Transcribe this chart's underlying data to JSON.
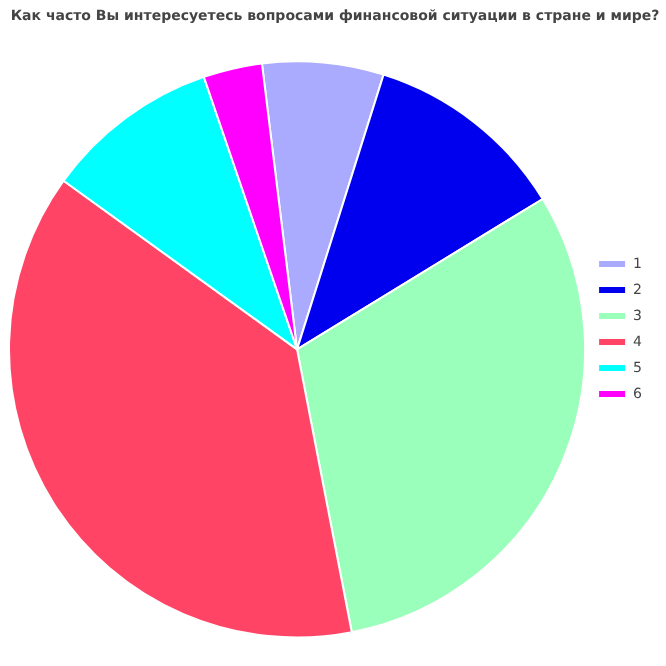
{
  "chart_data": {
    "type": "pie",
    "title": "Как часто Вы интересуетесь вопросами финансовой ситуации в стране и мире?",
    "categories": [
      "1",
      "2",
      "3",
      "4",
      "5",
      "6"
    ],
    "values": [
      6.8,
      11.4,
      30.7,
      38.0,
      9.8,
      3.3
    ],
    "colors": [
      "#aaaaff",
      "#0000ee",
      "#99ffbb",
      "#ff4466",
      "#00ffff",
      "#ff00ff"
    ],
    "legend": "right"
  }
}
